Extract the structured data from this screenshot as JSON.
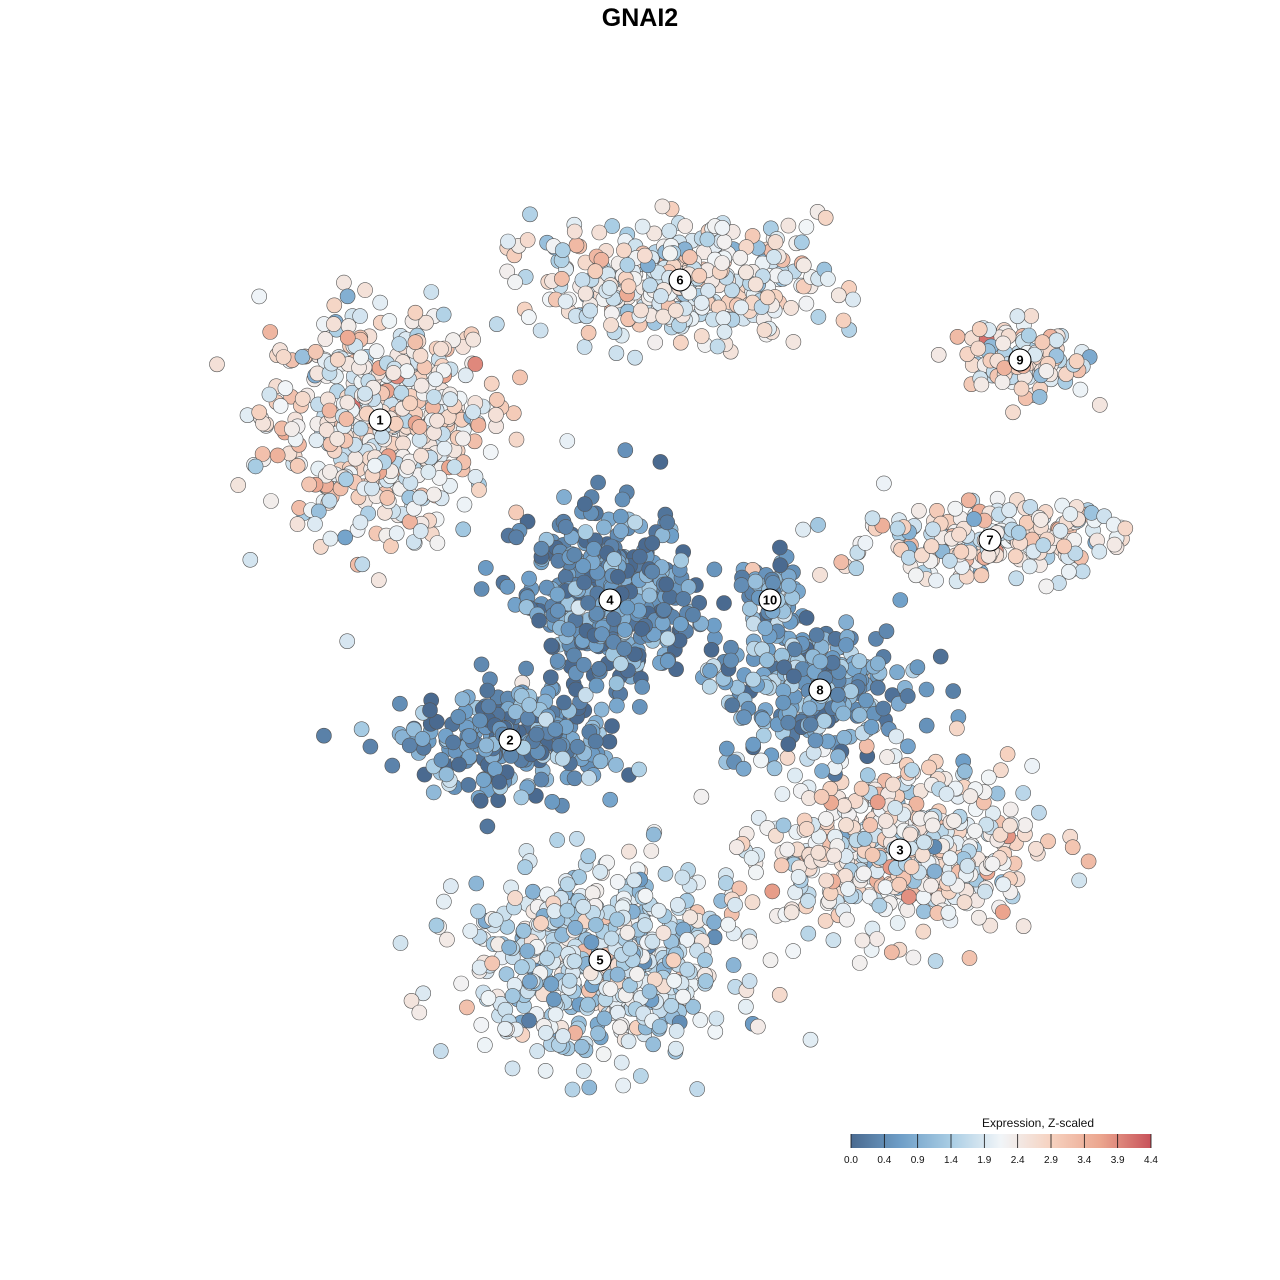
{
  "chart_data": {
    "type": "scatter",
    "title": "GNAI2",
    "xlabel": "",
    "ylabel": "",
    "grid": false,
    "colorscale": {
      "title": "Expression, Z-scaled",
      "ticks": [
        "0.0",
        "0.4",
        "0.9",
        "1.4",
        "1.9",
        "2.4",
        "2.9",
        "3.4",
        "3.9",
        "4.4"
      ],
      "range": [
        0.0,
        4.4
      ],
      "colors": [
        "#4a6a90",
        "#6f9fc8",
        "#a9cde4",
        "#f1f5f8",
        "#f6d2c0",
        "#eba58e",
        "#c8525a"
      ],
      "placement": "bottom-right"
    },
    "clusters": [
      {
        "id": "1",
        "label": "1",
        "x": -13.0,
        "y": 11.0,
        "mean_expr": 2.4
      },
      {
        "id": "2",
        "label": "2",
        "x": -6.5,
        "y": -5.0,
        "mean_expr": 0.6
      },
      {
        "id": "3",
        "label": "3",
        "x": 13.0,
        "y": -10.5,
        "mean_expr": 2.3
      },
      {
        "id": "4",
        "label": "4",
        "x": -1.5,
        "y": 2.0,
        "mean_expr": 0.5
      },
      {
        "id": "5",
        "label": "5",
        "x": -2.0,
        "y": -16.0,
        "mean_expr": 1.8
      },
      {
        "id": "6",
        "label": "6",
        "x": 2.0,
        "y": 18.0,
        "mean_expr": 2.2
      },
      {
        "id": "7",
        "label": "7",
        "x": 17.5,
        "y": 5.0,
        "mean_expr": 2.3
      },
      {
        "id": "8",
        "label": "8",
        "x": 9.0,
        "y": -2.5,
        "mean_expr": 0.8
      },
      {
        "id": "9",
        "label": "9",
        "x": 19.0,
        "y": 14.0,
        "mean_expr": 2.3
      },
      {
        "id": "10",
        "label": "10",
        "x": 6.5,
        "y": 2.0,
        "mean_expr": 0.8
      }
    ],
    "xlim": [
      -30,
      30
    ],
    "ylim": [
      -30,
      30
    ]
  }
}
